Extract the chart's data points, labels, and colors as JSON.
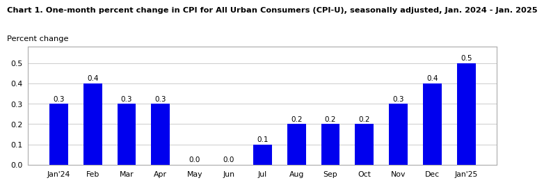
{
  "title": "Chart 1. One-month percent change in CPI for All Urban Consumers (CPI-U), seasonally adjusted, Jan. 2024 - Jan. 2025",
  "subtitle": "Percent change",
  "categories": [
    "Jan'24",
    "Feb",
    "Mar",
    "Apr",
    "May",
    "Jun",
    "Jul",
    "Aug",
    "Sep",
    "Oct",
    "Nov",
    "Dec",
    "Jan'25"
  ],
  "values": [
    0.3,
    0.4,
    0.3,
    0.3,
    0.0,
    0.0,
    0.1,
    0.2,
    0.2,
    0.2,
    0.3,
    0.4,
    0.5
  ],
  "bar_color": "#0000EE",
  "ylim": [
    0.0,
    0.58
  ],
  "yticks": [
    0.0,
    0.1,
    0.2,
    0.3,
    0.4,
    0.5
  ],
  "title_fontsize": 8.2,
  "subtitle_fontsize": 8.2,
  "label_fontsize": 7.5,
  "tick_fontsize": 7.8,
  "background_color": "#ffffff",
  "grid_color": "#cccccc",
  "bar_width": 0.55
}
